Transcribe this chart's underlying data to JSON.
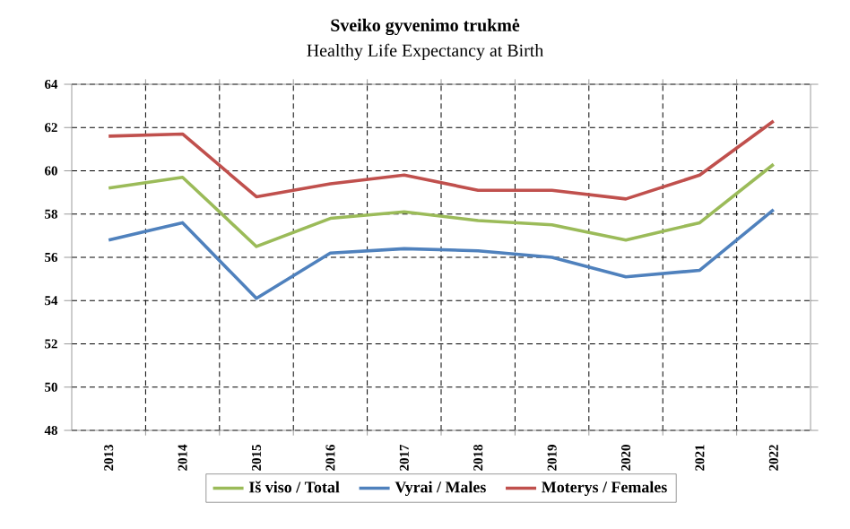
{
  "chart_data": {
    "type": "line",
    "title": "Sveiko gyvenimo trukmė",
    "subtitle": "Healthy Life Expectancy at Birth",
    "categories": [
      "2013",
      "2014",
      "2015",
      "2016",
      "2017",
      "2018",
      "2019",
      "2020",
      "2021",
      "2022"
    ],
    "series": [
      {
        "name": "Iš viso / Total",
        "color": "#9bbb59",
        "values": [
          59.2,
          59.7,
          56.5,
          57.8,
          58.1,
          57.7,
          57.5,
          56.8,
          57.6,
          60.3
        ]
      },
      {
        "name": "Vyrai / Males",
        "color": "#4f81bd",
        "values": [
          56.8,
          57.6,
          54.1,
          56.2,
          56.4,
          56.3,
          56.0,
          55.1,
          55.4,
          58.2
        ]
      },
      {
        "name": "Moterys / Females",
        "color": "#c0504d",
        "values": [
          61.6,
          61.7,
          58.8,
          59.4,
          59.8,
          59.1,
          59.1,
          58.7,
          59.8,
          62.3
        ]
      }
    ],
    "ylim": [
      48,
      64
    ],
    "yticks": [
      48,
      50,
      52,
      54,
      56,
      58,
      60,
      62,
      64
    ],
    "grid": true,
    "legend": "bottom",
    "marker": "none",
    "line_style": "solid"
  }
}
